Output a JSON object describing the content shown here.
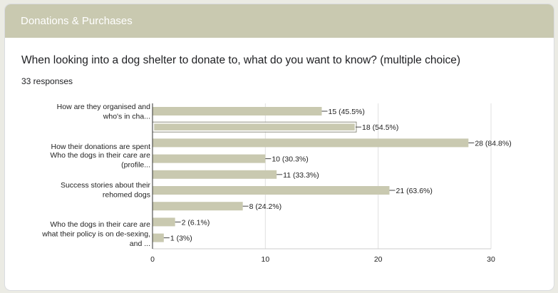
{
  "section": {
    "title": "Donations & Purchases"
  },
  "question": {
    "title": "When looking into a dog shelter to donate to, what do you want to know? (multiple choice)",
    "responses": "33 responses"
  },
  "colors": {
    "header": "#c9c9b0",
    "bar": "#c9c9b0",
    "axis": "#333333",
    "grid": "#e0e0e0"
  },
  "chart_data": {
    "type": "bar",
    "orientation": "horizontal",
    "xlim": [
      0,
      30
    ],
    "ticks": [
      0,
      10,
      20,
      30
    ],
    "grid": true,
    "category_labels": [
      {
        "lines": [
          "How are they organised and",
          "who's in cha..."
        ]
      },
      {
        "lines": [
          "How their donations are spent"
        ]
      },
      {
        "lines": [
          "Who the dogs in their care are",
          "(profile..."
        ]
      },
      {
        "lines": [
          "Success stories about their",
          "rehomed dogs"
        ]
      },
      {
        "lines": [
          "Who the dogs in their care are",
          "what their policy is on de-sexing,",
          "and ..."
        ]
      }
    ],
    "bars": [
      {
        "value": 15,
        "label": "15 (45.5%)",
        "highlight": false
      },
      {
        "value": 18,
        "label": "18 (54.5%)",
        "highlight": true
      },
      {
        "value": 28,
        "label": "28 (84.8%)",
        "highlight": false
      },
      {
        "value": 10,
        "label": "10 (30.3%)",
        "highlight": false
      },
      {
        "value": 11,
        "label": "11 (33.3%)",
        "highlight": false
      },
      {
        "value": 21,
        "label": "21 (63.6%)",
        "highlight": false
      },
      {
        "value": 8,
        "label": "8 (24.2%)",
        "highlight": false
      },
      {
        "value": 2,
        "label": "2 (6.1%)",
        "highlight": false
      },
      {
        "value": 1,
        "label": "1 (3%)",
        "highlight": false
      }
    ]
  }
}
